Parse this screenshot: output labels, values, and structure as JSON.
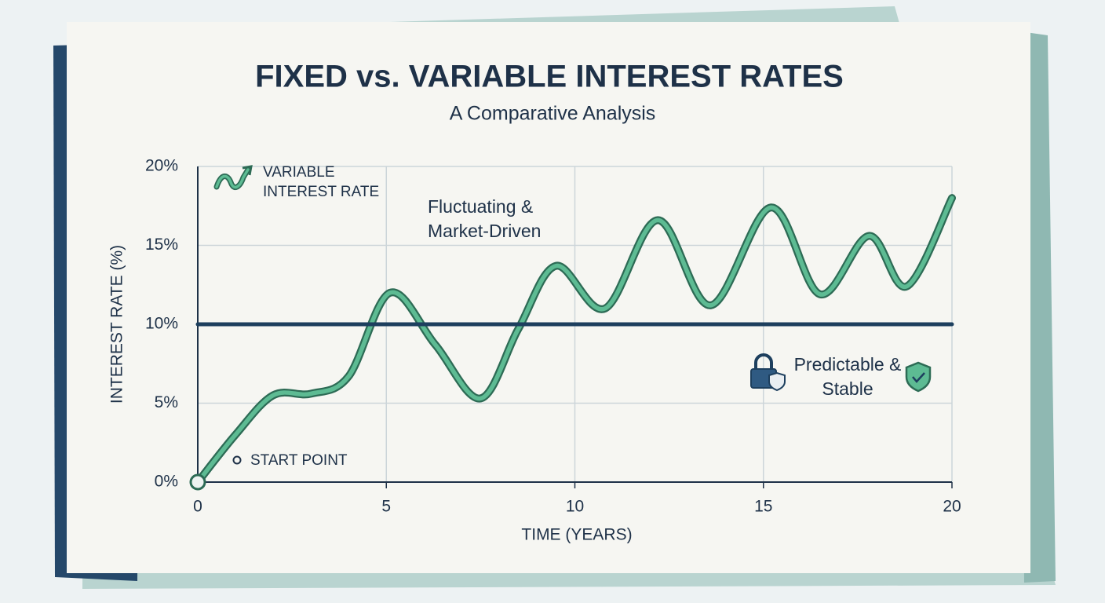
{
  "chart_data": {
    "type": "line",
    "title": "FIXED vs. VARIABLE INTEREST RATES",
    "subtitle": "A Comparative Analysis",
    "x_label": "TIME (YEARS)",
    "y_label": "INTEREST RATE (%)",
    "xlim": [
      0,
      20
    ],
    "xticks": [
      0,
      5,
      10,
      15,
      20
    ],
    "ylim": [
      0,
      20
    ],
    "yticks": [
      {
        "value": 0,
        "label": "0%"
      },
      {
        "value": 5,
        "label": "5%"
      },
      {
        "value": 10,
        "label": "10%"
      },
      {
        "value": 15,
        "label": "15%"
      },
      {
        "value": 20,
        "label": "20%"
      }
    ],
    "grid": true,
    "legend": "top-left",
    "series": [
      {
        "name": "VARIABLE INTEREST RATE",
        "color": "#5dbb93",
        "x": [
          0,
          1,
          2,
          3,
          4,
          5.1,
          6.3,
          7.5,
          8.5,
          9.5,
          10.8,
          12.2,
          13.6,
          15.2,
          16.5,
          17.8,
          18.8,
          20
        ],
        "values": [
          0,
          3,
          5.5,
          5.6,
          6.7,
          12,
          8.7,
          5.3,
          9.7,
          13.7,
          11,
          16.6,
          11.2,
          17.4,
          11.9,
          15.6,
          12.4,
          18
        ]
      },
      {
        "color": "#1d3f5e",
        "x": [
          0,
          20
        ],
        "values": [
          10,
          10
        ]
      }
    ],
    "annotations": [
      "Fluctuating & Market-Driven",
      "Predictable & Stable",
      "START POINT"
    ]
  }
}
